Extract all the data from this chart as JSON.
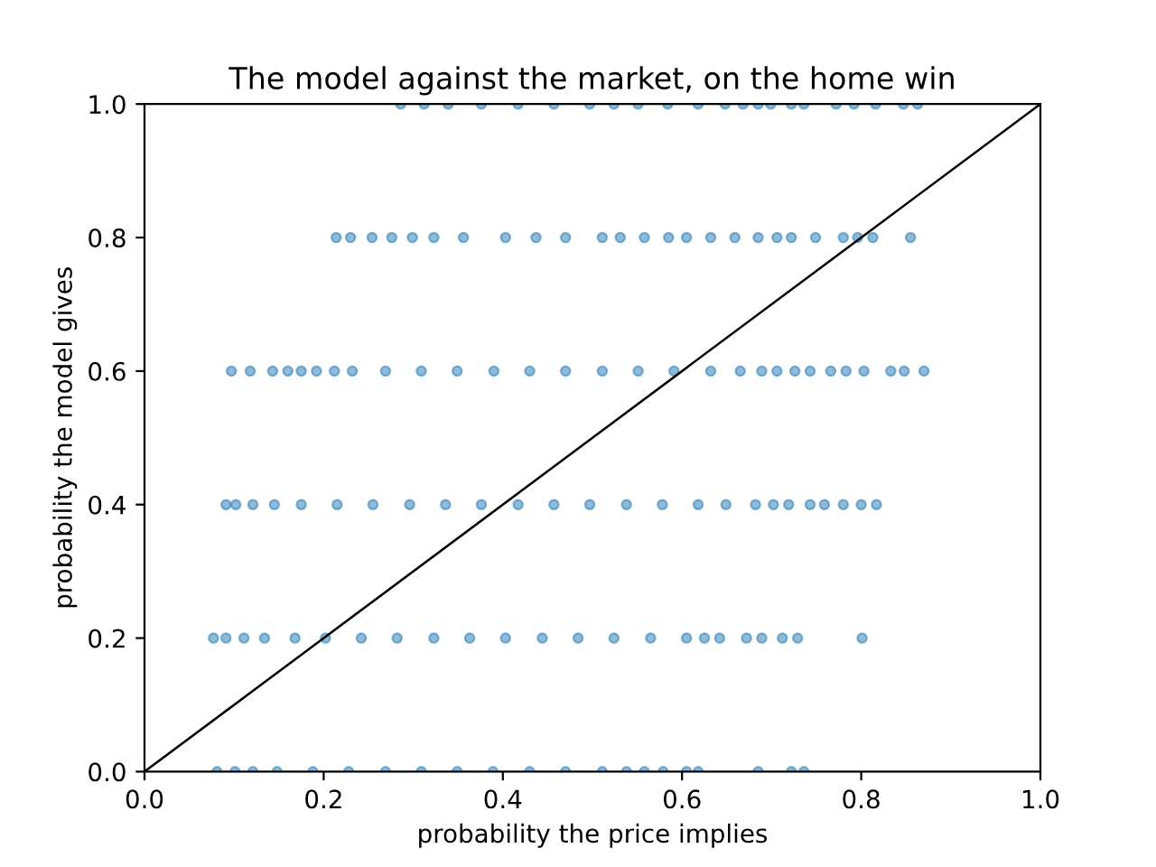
{
  "chart_data": {
    "type": "scatter",
    "title": "The model against the market, on the home win",
    "xlabel": "probability the price implies",
    "ylabel": "probability the model gives",
    "xlim": [
      0,
      1
    ],
    "ylim": [
      0,
      1
    ],
    "xticks": [
      {
        "value": 0,
        "label": "0.0"
      },
      0.2,
      0.4,
      0.6,
      0.8,
      {
        "value": 1,
        "label": "1.0"
      }
    ],
    "yticks": [
      {
        "value": 0,
        "label": "0.0"
      },
      0.2,
      0.4,
      0.6,
      0.8,
      {
        "value": 1,
        "label": "1.0"
      }
    ],
    "grid": false,
    "legend": false,
    "marker": "circle",
    "series": [
      {
        "color": "#1f77b4",
        "x": [
          0.286,
          0.312,
          0.339,
          0.376,
          0.417,
          0.457,
          0.497,
          0.524,
          0.551,
          0.584,
          0.618,
          0.648,
          0.668,
          0.685,
          0.699,
          0.722,
          0.736,
          0.772,
          0.792,
          0.816,
          0.847,
          0.863,
          0.214,
          0.23,
          0.254,
          0.276,
          0.299,
          0.323,
          0.356,
          0.403,
          0.437,
          0.47,
          0.511,
          0.531,
          0.558,
          0.585,
          0.605,
          0.632,
          0.659,
          0.685,
          0.706,
          0.722,
          0.749,
          0.78,
          0.796,
          0.813,
          0.855,
          0.097,
          0.118,
          0.143,
          0.16,
          0.175,
          0.192,
          0.212,
          0.232,
          0.269,
          0.309,
          0.349,
          0.39,
          0.43,
          0.47,
          0.511,
          0.551,
          0.591,
          0.632,
          0.665,
          0.689,
          0.706,
          0.726,
          0.743,
          0.766,
          0.783,
          0.803,
          0.833,
          0.848,
          0.87,
          0.091,
          0.102,
          0.121,
          0.145,
          0.175,
          0.215,
          0.255,
          0.296,
          0.336,
          0.376,
          0.417,
          0.457,
          0.497,
          0.538,
          0.578,
          0.618,
          0.649,
          0.682,
          0.702,
          0.719,
          0.743,
          0.759,
          0.78,
          0.8,
          0.817,
          0.077,
          0.091,
          0.111,
          0.134,
          0.168,
          0.202,
          0.242,
          0.282,
          0.323,
          0.363,
          0.403,
          0.444,
          0.484,
          0.524,
          0.565,
          0.605,
          0.625,
          0.642,
          0.672,
          0.689,
          0.712,
          0.729,
          0.801,
          0.081,
          0.101,
          0.121,
          0.148,
          0.188,
          0.228,
          0.269,
          0.309,
          0.349,
          0.389,
          0.43,
          0.47,
          0.511,
          0.538,
          0.558,
          0.579,
          0.605,
          0.618,
          0.685,
          0.722,
          0.736
        ],
        "values": [
          1.0,
          1.0,
          1.0,
          1.0,
          1.0,
          1.0,
          1.0,
          1.0,
          1.0,
          1.0,
          1.0,
          1.0,
          1.0,
          1.0,
          1.0,
          1.0,
          1.0,
          1.0,
          1.0,
          1.0,
          1.0,
          1.0,
          0.8,
          0.8,
          0.8,
          0.8,
          0.8,
          0.8,
          0.8,
          0.8,
          0.8,
          0.8,
          0.8,
          0.8,
          0.8,
          0.8,
          0.8,
          0.8,
          0.8,
          0.8,
          0.8,
          0.8,
          0.8,
          0.8,
          0.8,
          0.8,
          0.8,
          0.6,
          0.6,
          0.6,
          0.6,
          0.6,
          0.6,
          0.6,
          0.6,
          0.6,
          0.6,
          0.6,
          0.6,
          0.6,
          0.6,
          0.6,
          0.6,
          0.6,
          0.6,
          0.6,
          0.6,
          0.6,
          0.6,
          0.6,
          0.6,
          0.6,
          0.6,
          0.6,
          0.6,
          0.6,
          0.4,
          0.4,
          0.4,
          0.4,
          0.4,
          0.4,
          0.4,
          0.4,
          0.4,
          0.4,
          0.4,
          0.4,
          0.4,
          0.4,
          0.4,
          0.4,
          0.4,
          0.4,
          0.4,
          0.4,
          0.4,
          0.4,
          0.4,
          0.4,
          0.4,
          0.2,
          0.2,
          0.2,
          0.2,
          0.2,
          0.2,
          0.2,
          0.2,
          0.2,
          0.2,
          0.2,
          0.2,
          0.2,
          0.2,
          0.2,
          0.2,
          0.2,
          0.2,
          0.2,
          0.2,
          0.2,
          0.2,
          0.2,
          0.0,
          0.0,
          0.0,
          0.0,
          0.0,
          0.0,
          0.0,
          0.0,
          0.0,
          0.0,
          0.0,
          0.0,
          0.0,
          0.0,
          0.0,
          0.0,
          0.0,
          0.0,
          0.0,
          0.0,
          0.0
        ]
      },
      {
        "type": "line",
        "color": "#000000",
        "marker": "none",
        "x": [
          0,
          1
        ],
        "values": [
          0,
          1
        ]
      }
    ]
  }
}
